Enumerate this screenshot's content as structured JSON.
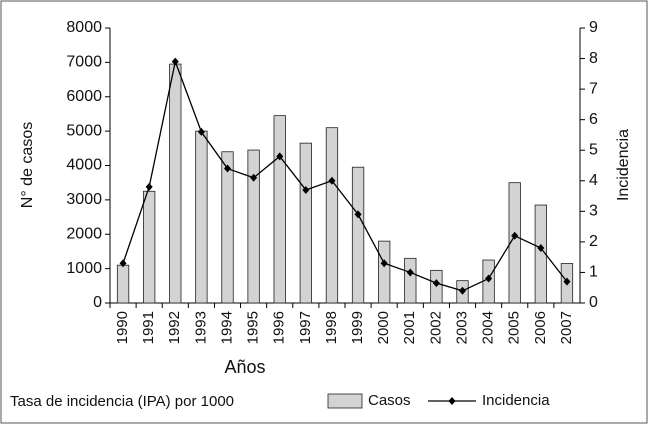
{
  "chart_data": {
    "type": "bar-line",
    "categories": [
      "1990",
      "1991",
      "1992",
      "1993",
      "1994",
      "1995",
      "1996",
      "1997",
      "1998",
      "1999",
      "2000",
      "2001",
      "2002",
      "2003",
      "2004",
      "2005",
      "2006",
      "2007"
    ],
    "series": [
      {
        "name": "Casos",
        "type": "bar",
        "color": "#d3d3d3",
        "values": [
          1100,
          3250,
          6950,
          5000,
          4400,
          4450,
          5450,
          4650,
          5100,
          3950,
          1800,
          1300,
          950,
          650,
          1250,
          3500,
          2850,
          1150
        ]
      },
      {
        "name": "Incidencia",
        "type": "line",
        "axis": "y2",
        "color": "#000000",
        "values": [
          1.3,
          3.8,
          7.9,
          5.6,
          4.4,
          4.1,
          4.8,
          3.7,
          4.0,
          2.9,
          1.3,
          1.0,
          0.65,
          0.4,
          0.8,
          2.2,
          1.8,
          0.7
        ]
      }
    ],
    "ylabel": "N° de casos",
    "y2label": "Incidencia",
    "xlabel": "Años",
    "note": "Tasa de incidencia (IPA) por 1000",
    "ylim": [
      0,
      8000
    ],
    "yticks": [
      0,
      1000,
      2000,
      3000,
      4000,
      5000,
      6000,
      7000,
      8000
    ],
    "y2lim": [
      0,
      9
    ],
    "y2ticks": [
      0,
      1,
      2,
      3,
      4,
      5,
      6,
      7,
      8,
      9
    ],
    "grid": false
  }
}
